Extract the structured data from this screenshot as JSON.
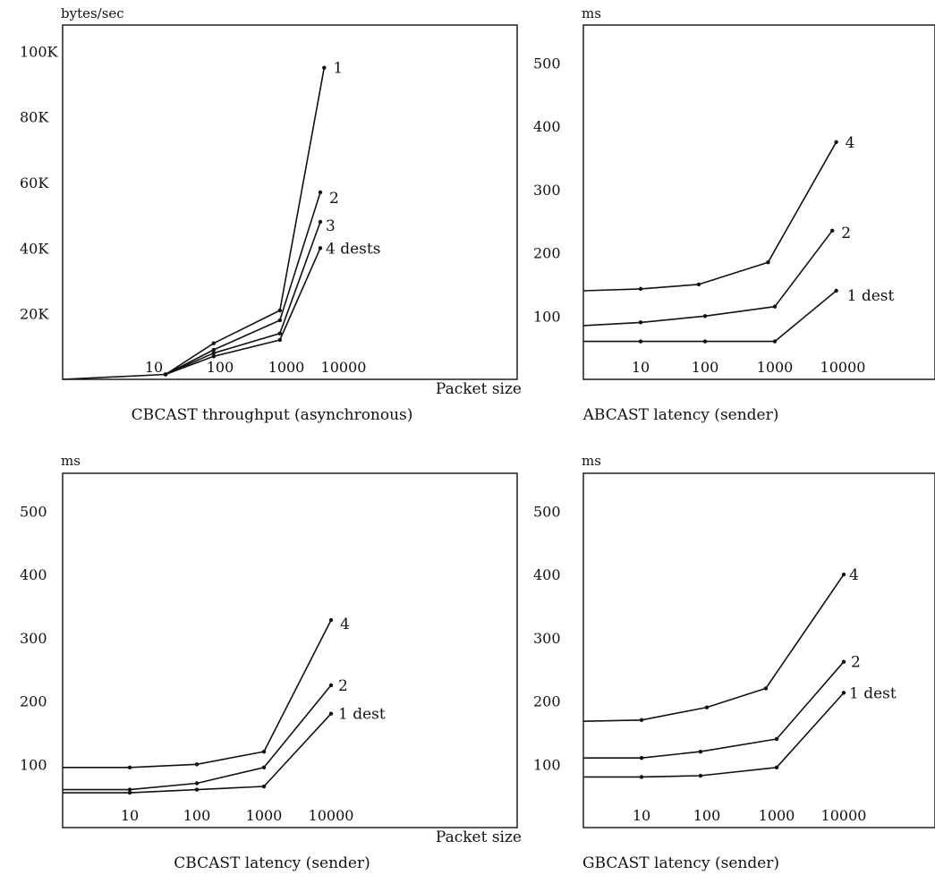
{
  "chart_data": [
    {
      "type": "line",
      "title": "CBCAST throughput (asynchronous)",
      "ylabel": "bytes/sec",
      "xlabel": "Packet size",
      "x_scale": "log",
      "x_ticks": [
        "10",
        "100",
        "1000",
        "10000"
      ],
      "y_ticks": [
        "20K",
        "40K",
        "60K",
        "80K",
        "100K"
      ],
      "ylim": [
        0,
        108000
      ],
      "series": [
        {
          "name": "1",
          "x": [
            1,
            15,
            80,
            800,
            13000
          ],
          "y": [
            0,
            1500,
            11000,
            21000,
            95000
          ]
        },
        {
          "name": "2",
          "x": [
            15,
            80,
            800,
            10000
          ],
          "y": [
            1500,
            9000,
            18000,
            57000
          ]
        },
        {
          "name": "3",
          "x": [
            15,
            80,
            800,
            10000
          ],
          "y": [
            1500,
            8000,
            14000,
            48000
          ]
        },
        {
          "name": "4 dests",
          "x": [
            15,
            80,
            800,
            10000
          ],
          "y": [
            1500,
            7000,
            12000,
            40000
          ]
        }
      ]
    },
    {
      "type": "line",
      "title": "ABCAST latency (sender)",
      "ylabel": "ms",
      "xlabel": "",
      "x_scale": "log",
      "x_ticks": [
        "10",
        "100",
        "1000",
        "10000"
      ],
      "y_ticks": [
        "100",
        "200",
        "300",
        "400",
        "500"
      ],
      "ylim": [
        0,
        560
      ],
      "series": [
        {
          "name": "4",
          "x": [
            1,
            10,
            80,
            800,
            8000
          ],
          "y": [
            140,
            143,
            150,
            185,
            375
          ]
        },
        {
          "name": "2",
          "x": [
            1,
            10,
            100,
            1000,
            7000
          ],
          "y": [
            85,
            90,
            100,
            115,
            235
          ]
        },
        {
          "name": "1 dest",
          "x": [
            1,
            10,
            100,
            1000,
            8000
          ],
          "y": [
            60,
            60,
            60,
            60,
            140
          ]
        }
      ]
    },
    {
      "type": "line",
      "title": "CBCAST latency (sender)",
      "ylabel": "ms",
      "xlabel": "Packet size",
      "x_scale": "log",
      "x_ticks": [
        "10",
        "100",
        "1000",
        "10000"
      ],
      "y_ticks": [
        "100",
        "200",
        "300",
        "400",
        "500"
      ],
      "ylim": [
        0,
        560
      ],
      "series": [
        {
          "name": "4",
          "x": [
            1,
            10,
            100,
            1000,
            10000
          ],
          "y": [
            95,
            95,
            100,
            120,
            328
          ]
        },
        {
          "name": "2",
          "x": [
            1,
            10,
            100,
            1000,
            10000
          ],
          "y": [
            60,
            60,
            70,
            95,
            225
          ]
        },
        {
          "name": "1 dest",
          "x": [
            1,
            10,
            100,
            1000,
            10000
          ],
          "y": [
            55,
            55,
            60,
            65,
            180
          ]
        }
      ]
    },
    {
      "type": "line",
      "title": "GBCAST latency (sender)",
      "ylabel": "ms",
      "xlabel": "",
      "x_scale": "log",
      "x_ticks": [
        "10",
        "100",
        "1000",
        "10000"
      ],
      "y_ticks": [
        "100",
        "200",
        "300",
        "400",
        "500"
      ],
      "ylim": [
        0,
        560
      ],
      "series": [
        {
          "name": "4",
          "x": [
            1,
            10,
            100,
            700,
            10000
          ],
          "y": [
            168,
            170,
            190,
            220,
            400
          ]
        },
        {
          "name": "2",
          "x": [
            1,
            10,
            80,
            1000,
            10000
          ],
          "y": [
            110,
            110,
            120,
            140,
            262
          ]
        },
        {
          "name": "1 dest",
          "x": [
            1,
            10,
            80,
            1000,
            10000
          ],
          "y": [
            80,
            80,
            82,
            95,
            213
          ]
        }
      ]
    }
  ]
}
